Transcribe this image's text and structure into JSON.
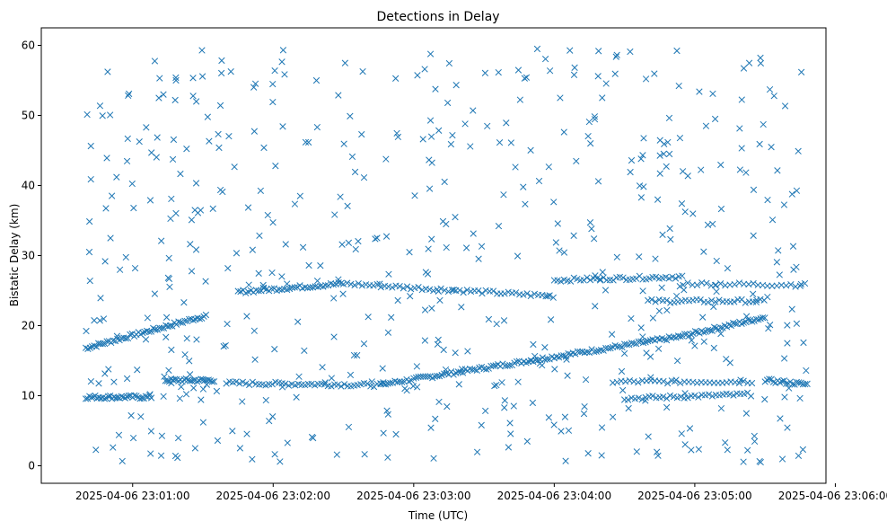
{
  "chart_data": {
    "type": "scatter",
    "title": "Detections in Delay",
    "xlabel": "Time (UTC)",
    "ylabel": "Bistatic Delay (km)",
    "xlim_seconds": [
      -19,
      316
    ],
    "xlim_note": "seconds after 2025-04-06 23:00:40",
    "ylim": [
      -2.5,
      62.5
    ],
    "x_ticks": [
      {
        "value": 20,
        "label": "2025-04-06 23:01:00"
      },
      {
        "value": 80,
        "label": "2025-04-06 23:02:00"
      },
      {
        "value": 140,
        "label": "2025-04-06 23:03:00"
      },
      {
        "value": 200,
        "label": "2025-04-06 23:04:00"
      },
      {
        "value": 260,
        "label": "2025-04-06 23:05:00"
      },
      {
        "value": 320,
        "label": "2025-04-06 23:06:00"
      }
    ],
    "y_ticks": [
      0,
      10,
      20,
      30,
      40,
      50,
      60
    ],
    "marker": "x",
    "color": "#1f77b4",
    "tracks": [
      {
        "name": "track-a",
        "x_start": 0,
        "x_end": 52,
        "y_start": 16.8,
        "y_end": 21.5,
        "step": 0.9
      },
      {
        "name": "track-b",
        "x_start": 126,
        "x_end": 253,
        "y_start": 11.6,
        "y_end": 18.4,
        "step": 1.0
      },
      {
        "name": "track-c",
        "x_start": 253,
        "x_end": 290,
        "y_start": 18.4,
        "y_end": 21.2,
        "step": 0.9
      },
      {
        "name": "band-1",
        "x_start": 0,
        "x_end": 28,
        "y_start": 9.8,
        "y_end": 9.8,
        "step": 0.8
      },
      {
        "name": "band-2",
        "x_start": 34,
        "x_end": 55,
        "y_start": 12.2,
        "y_end": 12.2,
        "step": 0.8
      },
      {
        "name": "band-3",
        "x_start": 60,
        "x_end": 128,
        "y_start": 11.8,
        "y_end": 11.5,
        "step": 1.4
      },
      {
        "name": "band-4",
        "x_start": 65,
        "x_end": 110,
        "y_start": 24.8,
        "y_end": 26.0,
        "step": 1.1
      },
      {
        "name": "band-5",
        "x_start": 110,
        "x_end": 200,
        "y_start": 26.0,
        "y_end": 24.2,
        "step": 1.6
      },
      {
        "name": "band-6",
        "x_start": 200,
        "x_end": 255,
        "y_start": 26.5,
        "y_end": 27.0,
        "step": 1.4
      },
      {
        "name": "band-7",
        "x_start": 240,
        "x_end": 290,
        "y_start": 23.5,
        "y_end": 23.5,
        "step": 1.6
      },
      {
        "name": "band-8",
        "x_start": 225,
        "x_end": 285,
        "y_start": 12.0,
        "y_end": 12.0,
        "step": 1.8
      },
      {
        "name": "band-9",
        "x_start": 230,
        "x_end": 285,
        "y_start": 9.6,
        "y_end": 10.2,
        "step": 1.5
      },
      {
        "name": "band-10",
        "x_start": 290,
        "x_end": 308,
        "y_start": 12.2,
        "y_end": 11.6,
        "step": 0.9
      },
      {
        "name": "band-11",
        "x_start": 255,
        "x_end": 308,
        "y_start": 26.0,
        "y_end": 25.8,
        "step": 2.0
      }
    ],
    "noise": {
      "count": 560,
      "x_range": [
        0,
        308
      ],
      "y_range": [
        0.5,
        60
      ],
      "seed": 7
    }
  }
}
